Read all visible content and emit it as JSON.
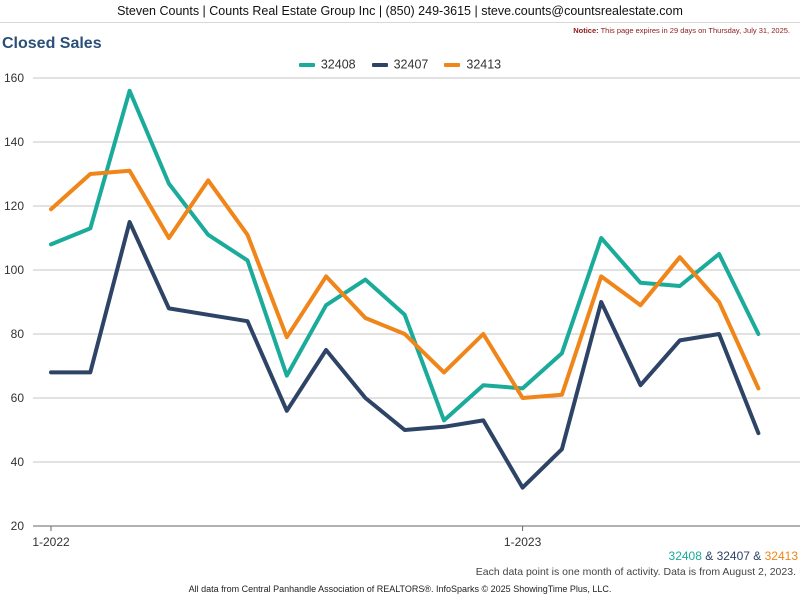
{
  "header": {
    "contact_line": "Steven Counts | Counts Real Estate Group Inc | (850) 249-3615 | steve.counts@countsrealestate.com"
  },
  "notice": {
    "label": "Notice:",
    "text": "This page expires in 29 days on Thursday, July 31, 2025."
  },
  "page_title": "Closed Sales",
  "zip_summary": {
    "a": "32408",
    "amp1": " & ",
    "b": "32407",
    "amp2": " & ",
    "c": "32413"
  },
  "footnote": "Each data point is one month of activity. Data is from August 2, 2023.",
  "footer": "All data from Central Panhandle Association of REALTORS®. InfoSparks © 2025 ShowingTime Plus, LLC.",
  "chart_data": {
    "type": "line",
    "title": "Closed Sales",
    "xlabel": "",
    "ylabel": "",
    "x": [
      "2022-01",
      "2022-02",
      "2022-03",
      "2022-04",
      "2022-05",
      "2022-06",
      "2022-07",
      "2022-08",
      "2022-09",
      "2022-10",
      "2022-11",
      "2022-12",
      "2023-01",
      "2023-02",
      "2023-03",
      "2023-04",
      "2023-05",
      "2023-06",
      "2023-07"
    ],
    "x_tick_labels": [
      {
        "month": "2022-01",
        "label": "1-2022"
      },
      {
        "month": "2023-01",
        "label": "1-2023"
      }
    ],
    "ylim": [
      20,
      160
    ],
    "yticks": [
      20,
      40,
      60,
      80,
      100,
      120,
      140,
      160
    ],
    "grid": true,
    "legend_position": "top-center",
    "series": [
      {
        "name": "32408",
        "color": "#1aab9b",
        "values": [
          108,
          113,
          156,
          127,
          111,
          103,
          67,
          89,
          97,
          86,
          53,
          64,
          63,
          74,
          110,
          96,
          95,
          105,
          80
        ]
      },
      {
        "name": "32407",
        "color": "#2e4466",
        "values": [
          68,
          68,
          115,
          88,
          86,
          84,
          56,
          75,
          60,
          50,
          51,
          53,
          32,
          44,
          90,
          64,
          78,
          80,
          49
        ]
      },
      {
        "name": "32413",
        "color": "#f08519",
        "values": [
          119,
          130,
          131,
          110,
          128,
          111,
          79,
          98,
          85,
          80,
          68,
          80,
          60,
          61,
          98,
          89,
          104,
          90,
          63
        ]
      }
    ]
  }
}
